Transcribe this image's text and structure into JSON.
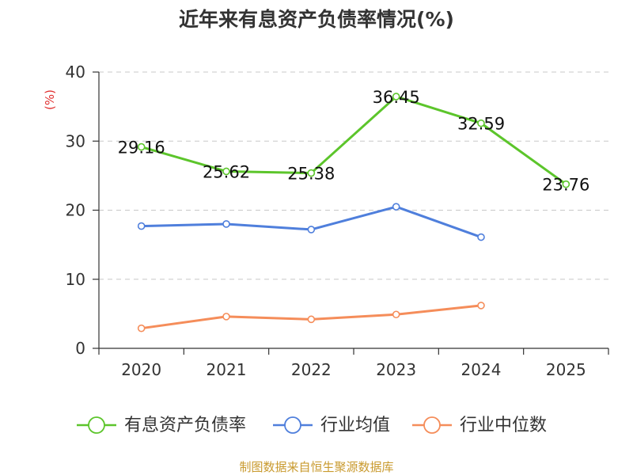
{
  "chart_data": {
    "type": "line",
    "title": "近年来有息资产负债率情况(%)",
    "ylabel": "(%)",
    "xlabel": "",
    "categories": [
      "2020",
      "2021",
      "2022",
      "2023",
      "2024",
      "2025"
    ],
    "ylim": [
      0,
      40
    ],
    "yticks": [
      0,
      10,
      20,
      30,
      40
    ],
    "grid": "horizontal dashed",
    "legend_position": "bottom",
    "series": [
      {
        "name": "有息资产负债率",
        "color": "#5cc52b",
        "values": [
          29.16,
          25.62,
          25.38,
          36.45,
          32.59,
          23.76
        ],
        "labels": [
          "29.16",
          "25.62",
          "25.38",
          "36.45",
          "32.59",
          "23.76"
        ]
      },
      {
        "name": "行业均值",
        "color": "#4f7fdc",
        "values": [
          17.7,
          18.0,
          17.2,
          20.5,
          16.1,
          null
        ]
      },
      {
        "name": "行业中位数",
        "color": "#f58d5a",
        "values": [
          2.9,
          4.6,
          4.2,
          4.9,
          6.2,
          null
        ]
      }
    ]
  },
  "source": "制图数据来自恒生聚源数据库",
  "colors": {
    "axis": "#333333",
    "grid": "#c8c8c8",
    "ylabel": "#e03030",
    "source": "#c99a2e"
  }
}
